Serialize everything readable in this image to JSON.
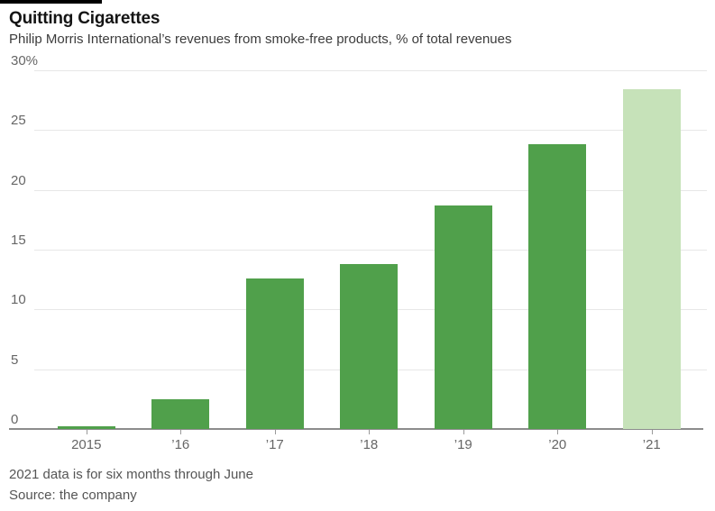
{
  "header": {
    "title": "Quitting Cigarettes",
    "subtitle": "Philip Morris International’s revenues from smoke-free products, % of total revenues"
  },
  "footer": {
    "note": "2021 data is for six months through June",
    "source": "Source: the company"
  },
  "colors": {
    "bar": "#50a04b",
    "bar_highlight": "#c6e2b9",
    "gridline": "#e7e7e7",
    "baseline": "#8c8c8c",
    "axis_text": "#666666"
  },
  "chart_data": {
    "type": "bar",
    "title": "Quitting Cigarettes",
    "subtitle": "Philip Morris International’s revenues from smoke-free products, % of total revenues",
    "categories": [
      "2015",
      "’16",
      "’17",
      "’18",
      "’19",
      "’20",
      "’21"
    ],
    "values": [
      0.2,
      2.5,
      12.6,
      13.8,
      18.7,
      23.8,
      28.4
    ],
    "unit": "%",
    "xlabel": "",
    "ylabel": "% of total revenues",
    "ylim": [
      0,
      30
    ],
    "yticks": [
      0,
      5,
      10,
      15,
      20,
      25,
      30
    ],
    "ytick_labels": [
      "0",
      "5",
      "10",
      "15",
      "20",
      "25",
      "30%"
    ],
    "grid": "horizontal",
    "legend": "none",
    "highlight_index": 6,
    "highlight_note": "2021 bar shown in lighter green; data is for six months through June"
  }
}
